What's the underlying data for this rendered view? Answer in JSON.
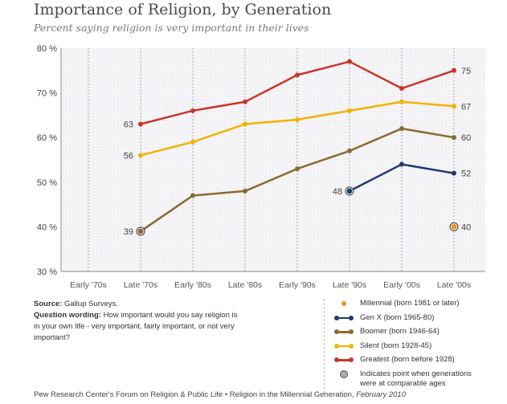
{
  "chart_data": {
    "type": "line",
    "title": "Importance of Religion, by Generation",
    "subtitle": "Percent saying religion is very important in their lives",
    "categories": [
      "Early '70s",
      "Late '70s",
      "Early '80s",
      "Late '80s",
      "Early '90s",
      "Late '90s",
      "Early '00s",
      "Late '00s"
    ],
    "ylim": [
      30,
      80
    ],
    "yticks": [
      "30 %",
      "40 %",
      "50 %",
      "60 %",
      "70 %",
      "80 %"
    ],
    "grid": "vertical dashed",
    "series": [
      {
        "name": "Greatest (born before 1928)",
        "color": "#c8372a",
        "values": [
          null,
          63,
          66,
          68,
          74,
          77,
          71,
          75
        ],
        "labels": {
          "1": "63",
          "7": "75"
        }
      },
      {
        "name": "Silent (born 1928-45)",
        "color": "#f0b400",
        "values": [
          null,
          56,
          59,
          63,
          64,
          66,
          68,
          67
        ],
        "labels": {
          "1": "56",
          "7": "67"
        }
      },
      {
        "name": "Boomer (born 1946-64)",
        "color": "#8a6a30",
        "values": [
          null,
          39,
          47,
          48,
          53,
          57,
          62,
          60
        ],
        "labels": {
          "1": "39",
          "7": "60"
        },
        "circled": [
          1
        ]
      },
      {
        "name": "Gen X (born 1965-80)",
        "color": "#1f3a6e",
        "values": [
          null,
          null,
          null,
          null,
          null,
          48,
          54,
          52
        ],
        "labels": {
          "5": "48",
          "7": "52"
        },
        "circled": [
          5
        ]
      },
      {
        "name": "Millennial (born 1981 or later)",
        "color": "#f0901e",
        "values": [
          null,
          null,
          null,
          null,
          null,
          null,
          null,
          40
        ],
        "labels": {
          "7": "40"
        },
        "circled": [
          7
        ]
      }
    ],
    "legend_order": [
      4,
      3,
      2,
      1,
      0
    ],
    "legend_placement": "bottom-right"
  },
  "notes": {
    "source_label": "Source:",
    "source_text": "Gallup Surveys.",
    "question_label": "Question wording:",
    "question_text": "How important would you say religion is in your own life - very important, fairly important, or not very important?"
  },
  "legend_circle_note": "Indicates point when generations were at comparable ages",
  "footer": {
    "text": "Pew Research Center's Forum on Religion & Public Life • Religion in the Millennial Generation,",
    "date": "February 2010"
  }
}
